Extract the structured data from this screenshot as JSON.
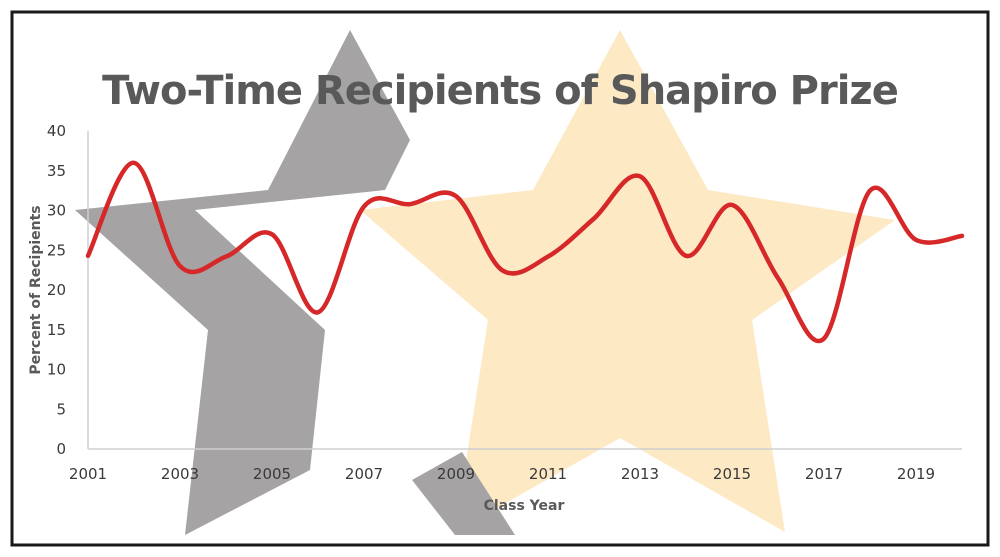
{
  "chart_data": {
    "type": "line",
    "title": "Two-Time Recipients of Shapiro Prize",
    "xlabel": "Class Year",
    "ylabel": "Percent of Recipients",
    "x": [
      2001,
      2002,
      2003,
      2004,
      2005,
      2006,
      2007,
      2008,
      2009,
      2010,
      2011,
      2012,
      2013,
      2014,
      2015,
      2016,
      2017,
      2018,
      2019,
      2020
    ],
    "series": [
      {
        "values": [
          24.3,
          36.0,
          23.0,
          24.2,
          27.0,
          17.2,
          30.5,
          30.8,
          31.8,
          22.5,
          24.2,
          29.0,
          34.3,
          24.3,
          30.7,
          21.5,
          13.9,
          32.5,
          26.3,
          26.8
        ]
      }
    ],
    "xlim": [
      2001,
      2020
    ],
    "ylim": [
      0,
      40
    ],
    "y_ticks": [
      "0",
      "5",
      "10",
      "15",
      "20",
      "25",
      "30",
      "35",
      "40"
    ],
    "x_ticks": [
      "2001",
      "2003",
      "2005",
      "2007",
      "2009",
      "2011",
      "2013",
      "2015",
      "2017",
      "2019"
    ],
    "grid": false,
    "legend": "none",
    "colors": {
      "line": "#d62828",
      "star_fill": "#fde9c4",
      "decor_gray": "#a5a3a3",
      "title": "#595959",
      "frame": "#1a1a1a"
    },
    "background_decoration": [
      "gray-star-icon",
      "cream-star-icon"
    ]
  }
}
